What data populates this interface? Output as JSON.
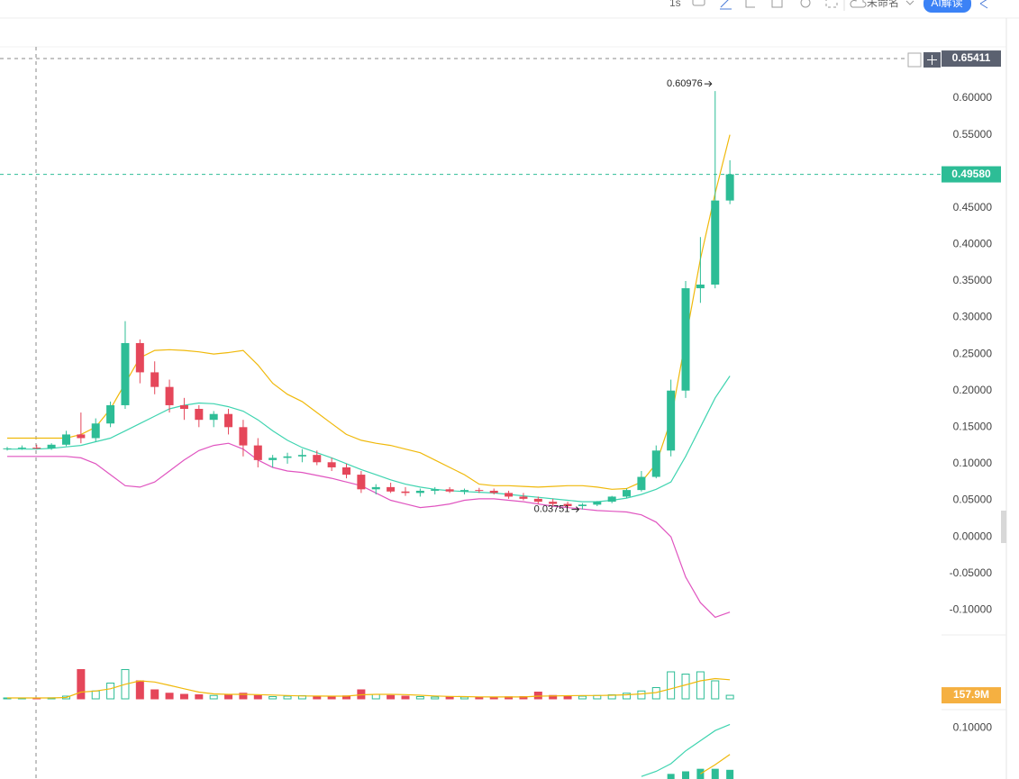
{
  "toolbar": {
    "interval": "1s",
    "layout_name": "未命名",
    "ai_button": "AI解读"
  },
  "chart_data": [
    {
      "type": "candlestick",
      "ylim": [
        -0.128,
        0.6665
      ],
      "yticks": [
        {
          "value": -0.1,
          "label": "-0.10000"
        },
        {
          "value": -0.05,
          "label": "-0.05000"
        },
        {
          "value": 0,
          "label": "0.00000"
        },
        {
          "value": 0.05,
          "label": "0.05000"
        },
        {
          "value": 0.1,
          "label": "0.10000"
        },
        {
          "value": 0.15,
          "label": "0.15000"
        },
        {
          "value": 0.2,
          "label": "0.20000"
        },
        {
          "value": 0.25,
          "label": "0.25000"
        },
        {
          "value": 0.3,
          "label": "0.30000"
        },
        {
          "value": 0.35,
          "label": "0.35000"
        },
        {
          "value": 0.4,
          "label": "0.40000"
        },
        {
          "value": 0.45,
          "label": "0.45000"
        },
        {
          "value": 0.5,
          "label": "0.50000"
        },
        {
          "value": 0.55,
          "label": "0.55000"
        },
        {
          "value": 0.6,
          "label": "0.60000"
        }
      ],
      "up_color": "#2dbd96",
      "down_color": "#e5475a",
      "open": [
        0.12,
        0.121,
        0.122,
        0.121,
        0.126,
        0.14,
        0.135,
        0.155,
        0.18,
        0.265,
        0.225,
        0.205,
        0.18,
        0.175,
        0.16,
        0.168,
        0.15,
        0.125,
        0.105,
        0.108,
        0.11,
        0.112,
        0.102,
        0.095,
        0.085,
        0.065,
        0.068,
        0.062,
        0.06,
        0.063,
        0.065,
        0.062,
        0.064,
        0.063,
        0.06,
        0.055,
        0.052,
        0.048,
        0.045,
        0.042,
        0.044,
        0.048,
        0.055,
        0.064,
        0.082,
        0.118,
        0.2,
        0.34,
        0.345,
        0.46
      ],
      "high": [
        0.123,
        0.125,
        0.126,
        0.128,
        0.145,
        0.17,
        0.162,
        0.185,
        0.295,
        0.27,
        0.24,
        0.215,
        0.19,
        0.18,
        0.172,
        0.175,
        0.16,
        0.135,
        0.112,
        0.115,
        0.12,
        0.118,
        0.108,
        0.1,
        0.09,
        0.072,
        0.074,
        0.068,
        0.066,
        0.068,
        0.068,
        0.066,
        0.067,
        0.066,
        0.063,
        0.06,
        0.055,
        0.052,
        0.048,
        0.046,
        0.049,
        0.056,
        0.066,
        0.09,
        0.125,
        0.215,
        0.35,
        0.41,
        0.60976,
        0.515
      ],
      "low": [
        0.118,
        0.119,
        0.12,
        0.119,
        0.124,
        0.128,
        0.13,
        0.15,
        0.175,
        0.21,
        0.195,
        0.17,
        0.16,
        0.15,
        0.15,
        0.14,
        0.11,
        0.095,
        0.095,
        0.1,
        0.102,
        0.098,
        0.09,
        0.08,
        0.06,
        0.058,
        0.06,
        0.056,
        0.055,
        0.058,
        0.06,
        0.058,
        0.06,
        0.058,
        0.052,
        0.05,
        0.045,
        0.042,
        0.04,
        0.03751,
        0.042,
        0.046,
        0.053,
        0.062,
        0.08,
        0.11,
        0.19,
        0.32,
        0.34,
        0.455
      ],
      "close": [
        0.121,
        0.122,
        0.121,
        0.126,
        0.14,
        0.135,
        0.155,
        0.18,
        0.265,
        0.225,
        0.205,
        0.18,
        0.175,
        0.16,
        0.168,
        0.15,
        0.125,
        0.105,
        0.108,
        0.11,
        0.112,
        0.102,
        0.095,
        0.085,
        0.065,
        0.068,
        0.062,
        0.06,
        0.063,
        0.065,
        0.062,
        0.064,
        0.063,
        0.06,
        0.055,
        0.052,
        0.048,
        0.045,
        0.042,
        0.044,
        0.048,
        0.055,
        0.064,
        0.082,
        0.118,
        0.2,
        0.34,
        0.345,
        0.46,
        0.4958
      ],
      "series": [
        {
          "color": "#f0b90b",
          "values": [
            0.135,
            0.135,
            0.135,
            0.135,
            0.135,
            0.14,
            0.15,
            0.175,
            0.21,
            0.245,
            0.255,
            0.256,
            0.255,
            0.253,
            0.25,
            0.252,
            0.255,
            0.235,
            0.21,
            0.195,
            0.185,
            0.17,
            0.155,
            0.14,
            0.132,
            0.128,
            0.125,
            0.12,
            0.115,
            0.105,
            0.095,
            0.085,
            0.072,
            0.07,
            0.07,
            0.069,
            0.068,
            0.069,
            0.07,
            0.07,
            0.068,
            0.065,
            0.066,
            0.075,
            0.1,
            0.16,
            0.27,
            0.38,
            0.47,
            0.55
          ]
        },
        {
          "color": "#3fd4b0",
          "values": [
            0.12,
            0.12,
            0.12,
            0.121,
            0.123,
            0.125,
            0.13,
            0.135,
            0.145,
            0.155,
            0.165,
            0.175,
            0.18,
            0.183,
            0.182,
            0.178,
            0.172,
            0.16,
            0.145,
            0.132,
            0.122,
            0.115,
            0.108,
            0.1,
            0.092,
            0.085,
            0.078,
            0.072,
            0.068,
            0.065,
            0.063,
            0.062,
            0.061,
            0.06,
            0.058,
            0.056,
            0.054,
            0.052,
            0.05,
            0.048,
            0.048,
            0.05,
            0.053,
            0.058,
            0.065,
            0.075,
            0.11,
            0.15,
            0.19,
            0.22
          ]
        },
        {
          "color": "#e055c0",
          "values": [
            0.11,
            0.11,
            0.11,
            0.11,
            0.11,
            0.108,
            0.1,
            0.085,
            0.07,
            0.068,
            0.075,
            0.09,
            0.105,
            0.118,
            0.125,
            0.128,
            0.12,
            0.105,
            0.095,
            0.09,
            0.088,
            0.084,
            0.08,
            0.075,
            0.07,
            0.06,
            0.05,
            0.045,
            0.04,
            0.042,
            0.045,
            0.05,
            0.052,
            0.052,
            0.05,
            0.048,
            0.045,
            0.042,
            0.04,
            0.038,
            0.036,
            0.035,
            0.034,
            0.03,
            0.02,
            0.0,
            -0.055,
            -0.09,
            -0.11,
            -0.103
          ]
        }
      ],
      "high_label": 0.60976,
      "low_label": 0.03751,
      "last_price": {
        "value": 0.4958,
        "label": "0.49580"
      },
      "crosshair_price": 0.65411
    },
    {
      "type": "volume",
      "ylim": [
        0,
        1600
      ],
      "values": [
        40,
        40,
        40,
        45,
        120,
        1300,
        350,
        700,
        1300,
        800,
        400,
        250,
        200,
        180,
        150,
        200,
        250,
        150,
        100,
        120,
        140,
        120,
        100,
        130,
        400,
        200,
        150,
        120,
        100,
        80,
        90,
        80,
        80,
        70,
        90,
        100,
        300,
        150,
        100,
        120,
        150,
        180,
        250,
        350,
        500,
        1200,
        1100,
        1200,
        800,
        157.9
      ],
      "series": [
        {
          "color": "#f0b90b",
          "values": [
            40,
            40,
            40,
            42,
            60,
            300,
            350,
            450,
            650,
            800,
            750,
            600,
            450,
            300,
            220,
            200,
            200,
            190,
            170,
            150,
            130,
            125,
            120,
            120,
            180,
            200,
            200,
            190,
            160,
            130,
            110,
            100,
            90,
            85,
            85,
            85,
            120,
            130,
            140,
            150,
            150,
            160,
            180,
            220,
            280,
            450,
            620,
            800,
            900,
            850
          ]
        }
      ],
      "current_volume": {
        "value": 157.9,
        "label": "157.9M"
      }
    },
    {
      "type": "indicator",
      "ylim": [
        0,
        0.12
      ],
      "yticks": [
        {
          "value": 0.1,
          "label": "0.10000"
        }
      ],
      "bars": {
        "color": "#2dbd96",
        "values": [
          null,
          null,
          null,
          null,
          null,
          null,
          null,
          null,
          null,
          null,
          null,
          null,
          null,
          null,
          null,
          null,
          null,
          null,
          null,
          null,
          null,
          null,
          null,
          null,
          null,
          null,
          null,
          null,
          null,
          null,
          null,
          null,
          null,
          null,
          null,
          null,
          null,
          null,
          null,
          null,
          null,
          null,
          null,
          null,
          null,
          0.01,
          0.015,
          0.02,
          0.02,
          0.018
        ]
      },
      "series": [
        {
          "color": "#3fd4b0",
          "values": [
            null,
            null,
            null,
            null,
            null,
            null,
            null,
            null,
            null,
            null,
            null,
            null,
            null,
            null,
            null,
            null,
            null,
            null,
            null,
            null,
            null,
            null,
            null,
            null,
            null,
            null,
            null,
            null,
            null,
            null,
            null,
            null,
            null,
            null,
            null,
            null,
            null,
            null,
            null,
            null,
            null,
            null,
            null,
            0.005,
            0.015,
            0.03,
            0.055,
            0.075,
            0.095,
            0.107
          ]
        },
        {
          "color": "#f0b90b",
          "values": [
            null,
            null,
            null,
            null,
            null,
            null,
            null,
            null,
            null,
            null,
            null,
            null,
            null,
            null,
            null,
            null,
            null,
            null,
            null,
            null,
            null,
            null,
            null,
            null,
            null,
            null,
            null,
            null,
            null,
            null,
            null,
            null,
            null,
            null,
            null,
            null,
            null,
            null,
            null,
            null,
            null,
            null,
            null,
            null,
            null,
            null,
            null,
            0.01,
            0.028,
            0.048
          ]
        }
      ]
    }
  ]
}
